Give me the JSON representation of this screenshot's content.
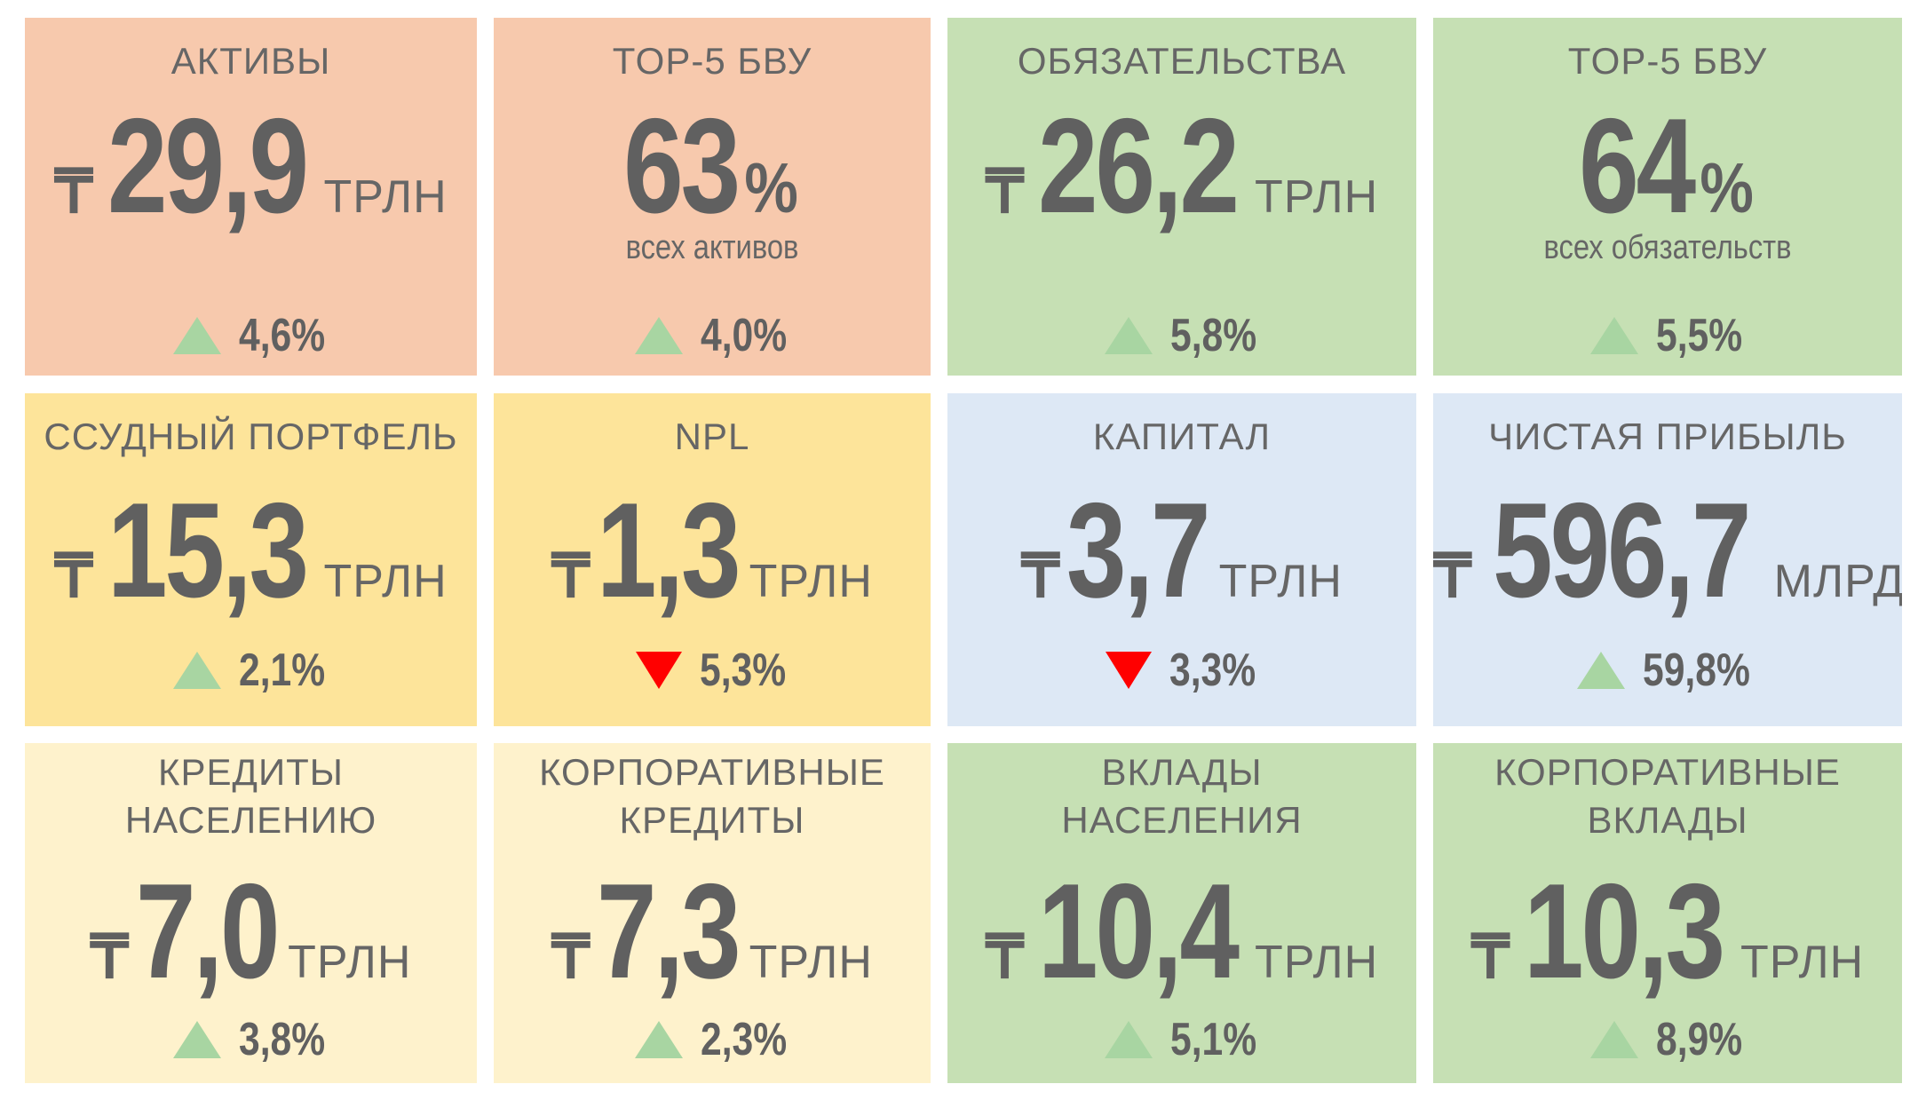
{
  "colors": {
    "salmon": "#f7c9ad",
    "green": "#c6e0b4",
    "gold": "#fde49a",
    "blue": "#dde8f5",
    "cream": "#fef2cc",
    "text": "#666666",
    "arrow_up": "#a8d5a2",
    "arrow_down": "#ff0000"
  },
  "tiles": [
    {
      "title": [
        "АКТИВЫ"
      ],
      "currency": "₸",
      "value": "29,9",
      "unit": "ТРЛН",
      "subtitle": "",
      "change": "4,6%",
      "direction": "up",
      "color": "#f7c9ad"
    },
    {
      "title": [
        "TOP-5 БВУ"
      ],
      "currency": "",
      "value": "63",
      "unit": "%",
      "subtitle": "всех активов",
      "change": "4,0%",
      "direction": "up",
      "color": "#f7c9ad"
    },
    {
      "title": [
        "ОБЯЗАТЕЛЬСТВА"
      ],
      "currency": "₸",
      "value": "26,2",
      "unit": "ТРЛН",
      "subtitle": "",
      "change": "5,8%",
      "direction": "up",
      "color": "#c6e0b4"
    },
    {
      "title": [
        "TOP-5 БВУ"
      ],
      "currency": "",
      "value": "64",
      "unit": "%",
      "subtitle": "всех обязательств",
      "change": "5,5%",
      "direction": "up",
      "color": "#c6e0b4"
    },
    {
      "title": [
        "ССУДНЫЙ ПОРТФЕЛЬ"
      ],
      "currency": "₸",
      "value": "15,3",
      "unit": "ТРЛН",
      "subtitle": "",
      "change": "2,1%",
      "direction": "up",
      "color": "#fde49a"
    },
    {
      "title": [
        "NPL"
      ],
      "currency": "₸",
      "value": "1,3",
      "unit": "ТРЛН",
      "subtitle": "",
      "change": "5,3%",
      "direction": "down",
      "color": "#fde49a"
    },
    {
      "title": [
        "КАПИТАЛ"
      ],
      "currency": "₸",
      "value": "3,7",
      "unit": "ТРЛН",
      "subtitle": "",
      "change": "3,3%",
      "direction": "down",
      "color": "#dde8f5"
    },
    {
      "title": [
        "ЧИСТАЯ ПРИБЫЛЬ"
      ],
      "currency": "₸",
      "value": "596,7",
      "unit": "МЛРД",
      "subtitle": "",
      "change": "59,8%",
      "direction": "up",
      "color": "#dde8f5"
    },
    {
      "title": [
        "КРЕДИТЫ",
        "НАСЕЛЕНИЮ"
      ],
      "currency": "₸",
      "value": "7,0",
      "unit": "ТРЛН",
      "subtitle": "",
      "change": "3,8%",
      "direction": "up",
      "color": "#fef2cc"
    },
    {
      "title": [
        "КОРПОРАТИВНЫЕ",
        "КРЕДИТЫ"
      ],
      "currency": "₸",
      "value": "7,3",
      "unit": "ТРЛН",
      "subtitle": "",
      "change": "2,3%",
      "direction": "up",
      "color": "#fef2cc"
    },
    {
      "title": [
        "ВКЛАДЫ",
        "НАСЕЛЕНИЯ"
      ],
      "currency": "₸",
      "value": "10,4",
      "unit": "ТРЛН",
      "subtitle": "",
      "change": "5,1%",
      "direction": "up",
      "color": "#c6e0b4"
    },
    {
      "title": [
        "КОРПОРАТИВНЫЕ",
        "ВКЛАДЫ"
      ],
      "currency": "₸",
      "value": "10,3",
      "unit": "ТРЛН",
      "subtitle": "",
      "change": "8,9%",
      "direction": "up",
      "color": "#c6e0b4"
    }
  ]
}
